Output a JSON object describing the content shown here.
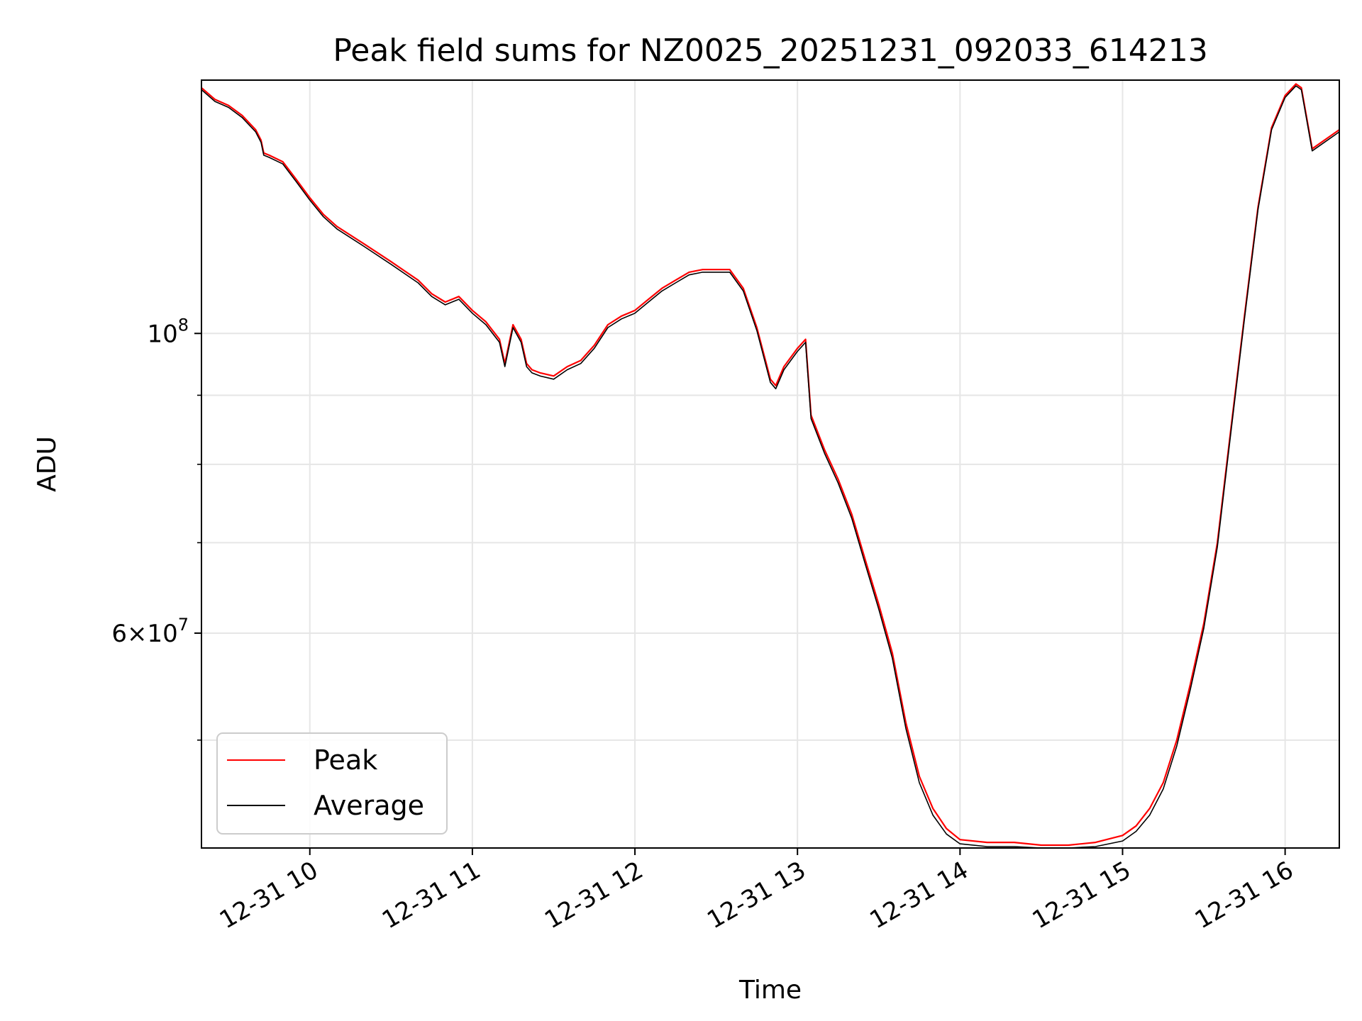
{
  "chart_data": {
    "type": "line",
    "title": "Peak field sums for NZ0025_20251231_092033_614213",
    "xlabel": "Time",
    "ylabel": "ADU",
    "x_scale": "time",
    "y_scale": "log",
    "xlim": [
      "12-31 09:20",
      "12-31 16:20"
    ],
    "ylim": [
      41600000,
      154000000
    ],
    "x_ticks": [
      "12-31 10",
      "12-31 11",
      "12-31 12",
      "12-31 13",
      "12-31 14",
      "12-31 15",
      "12-31 16"
    ],
    "y_ticks": [
      {
        "value": 100000000,
        "base": "10",
        "exp": "8",
        "mult": ""
      },
      {
        "value": 60000000,
        "base": "10",
        "exp": "7",
        "mult": "6×"
      }
    ],
    "y_minor_ticks": [
      50000000,
      70000000,
      80000000,
      90000000
    ],
    "grid": true,
    "legend_position": "lower-left",
    "series": [
      {
        "name": "Peak",
        "color": "#ff0000",
        "x": [
          "12-31 09:20",
          "12-31 09:25",
          "12-31 09:30",
          "12-31 09:35",
          "12-31 09:40",
          "12-31 09:42",
          "12-31 09:43",
          "12-31 09:45",
          "12-31 09:50",
          "12-31 09:55",
          "12-31 10:00",
          "12-31 10:05",
          "12-31 10:10",
          "12-31 10:20",
          "12-31 10:30",
          "12-31 10:40",
          "12-31 10:45",
          "12-31 10:50",
          "12-31 10:55",
          "12-31 11:00",
          "12-31 11:05",
          "12-31 11:10",
          "12-31 11:12",
          "12-31 11:15",
          "12-31 11:18",
          "12-31 11:20",
          "12-31 11:22",
          "12-31 11:25",
          "12-31 11:30",
          "12-31 11:35",
          "12-31 11:40",
          "12-31 11:45",
          "12-31 11:50",
          "12-31 11:55",
          "12-31 12:00",
          "12-31 12:05",
          "12-31 12:10",
          "12-31 12:15",
          "12-31 12:20",
          "12-31 12:25",
          "12-31 12:30",
          "12-31 12:35",
          "12-31 12:40",
          "12-31 12:45",
          "12-31 12:50",
          "12-31 12:52",
          "12-31 12:55",
          "12-31 13:00",
          "12-31 13:03",
          "12-31 13:05",
          "12-31 13:10",
          "12-31 13:15",
          "12-31 13:20",
          "12-31 13:25",
          "12-31 13:30",
          "12-31 13:35",
          "12-31 13:40",
          "12-31 13:45",
          "12-31 13:50",
          "12-31 13:55",
          "12-31 14:00",
          "12-31 14:10",
          "12-31 14:20",
          "12-31 14:30",
          "12-31 14:40",
          "12-31 14:50",
          "12-31 15:00",
          "12-31 15:05",
          "12-31 15:10",
          "12-31 15:15",
          "12-31 15:20",
          "12-31 15:25",
          "12-31 15:30",
          "12-31 15:35",
          "12-31 15:40",
          "12-31 15:45",
          "12-31 15:50",
          "12-31 15:55",
          "12-31 16:00",
          "12-31 16:04",
          "12-31 16:06",
          "12-31 16:10",
          "12-31 16:20"
        ],
        "values": [
          152000000,
          149000000,
          147500000,
          145000000,
          141500000,
          139000000,
          136000000,
          135500000,
          134000000,
          130000000,
          126000000,
          122500000,
          120000000,
          116500000,
          113000000,
          109500000,
          107000000,
          105500000,
          106500000,
          104000000,
          102000000,
          99000000,
          95000000,
          101500000,
          99000000,
          95000000,
          94000000,
          93500000,
          93000000,
          94500000,
          95500000,
          98000000,
          101500000,
          103000000,
          104000000,
          106000000,
          108000000,
          109500000,
          111000000,
          111500000,
          111500000,
          111500000,
          108000000,
          101000000,
          92500000,
          91500000,
          94500000,
          97500000,
          99000000,
          87000000,
          82000000,
          78000000,
          73500000,
          68000000,
          63000000,
          58000000,
          51500000,
          47000000,
          44500000,
          43000000,
          42200000,
          42000000,
          42000000,
          41800000,
          41800000,
          42000000,
          42500000,
          43200000,
          44500000,
          46500000,
          50000000,
          55000000,
          61000000,
          70000000,
          85000000,
          103000000,
          124000000,
          142000000,
          150000000,
          153000000,
          152000000,
          137000000,
          141500000
        ]
      },
      {
        "name": "Average",
        "color": "#000000",
        "x": [
          "12-31 09:20",
          "12-31 09:25",
          "12-31 09:30",
          "12-31 09:35",
          "12-31 09:40",
          "12-31 09:42",
          "12-31 09:43",
          "12-31 09:45",
          "12-31 09:50",
          "12-31 09:55",
          "12-31 10:00",
          "12-31 10:05",
          "12-31 10:10",
          "12-31 10:20",
          "12-31 10:30",
          "12-31 10:40",
          "12-31 10:45",
          "12-31 10:50",
          "12-31 10:55",
          "12-31 11:00",
          "12-31 11:05",
          "12-31 11:10",
          "12-31 11:12",
          "12-31 11:15",
          "12-31 11:18",
          "12-31 11:20",
          "12-31 11:22",
          "12-31 11:25",
          "12-31 11:30",
          "12-31 11:35",
          "12-31 11:40",
          "12-31 11:45",
          "12-31 11:50",
          "12-31 11:55",
          "12-31 12:00",
          "12-31 12:05",
          "12-31 12:10",
          "12-31 12:15",
          "12-31 12:20",
          "12-31 12:25",
          "12-31 12:30",
          "12-31 12:35",
          "12-31 12:40",
          "12-31 12:45",
          "12-31 12:50",
          "12-31 12:52",
          "12-31 12:55",
          "12-31 13:00",
          "12-31 13:03",
          "12-31 13:05",
          "12-31 13:10",
          "12-31 13:15",
          "12-31 13:20",
          "12-31 13:25",
          "12-31 13:30",
          "12-31 13:35",
          "12-31 13:40",
          "12-31 13:45",
          "12-31 13:50",
          "12-31 13:55",
          "12-31 14:00",
          "12-31 14:10",
          "12-31 14:20",
          "12-31 14:30",
          "12-31 14:40",
          "12-31 14:50",
          "12-31 15:00",
          "12-31 15:05",
          "12-31 15:10",
          "12-31 15:15",
          "12-31 15:20",
          "12-31 15:25",
          "12-31 15:30",
          "12-31 15:35",
          "12-31 15:40",
          "12-31 15:45",
          "12-31 15:50",
          "12-31 15:55",
          "12-31 16:00",
          "12-31 16:04",
          "12-31 16:06",
          "12-31 16:10",
          "12-31 16:20"
        ],
        "values": [
          151500000,
          148500000,
          147000000,
          144500000,
          141000000,
          138500000,
          135500000,
          135000000,
          133500000,
          129500000,
          125500000,
          122000000,
          119500000,
          116000000,
          112500000,
          109000000,
          106500000,
          105000000,
          106000000,
          103500000,
          101500000,
          98500000,
          94500000,
          101000000,
          98500000,
          94500000,
          93500000,
          93000000,
          92500000,
          94000000,
          95000000,
          97500000,
          101000000,
          102500000,
          103500000,
          105500000,
          107500000,
          109000000,
          110500000,
          111000000,
          111000000,
          111000000,
          107500000,
          100500000,
          92000000,
          91000000,
          94000000,
          97000000,
          98500000,
          86500000,
          81500000,
          77500000,
          73000000,
          67500000,
          62500000,
          57500000,
          51000000,
          46500000,
          44000000,
          42600000,
          41900000,
          41700000,
          41700000,
          41600000,
          41600000,
          41700000,
          42100000,
          42800000,
          44000000,
          46000000,
          49500000,
          54500000,
          60500000,
          69500000,
          84500000,
          102500000,
          123500000,
          141500000,
          149500000,
          152500000,
          151500000,
          136500000,
          141000000
        ]
      }
    ]
  }
}
